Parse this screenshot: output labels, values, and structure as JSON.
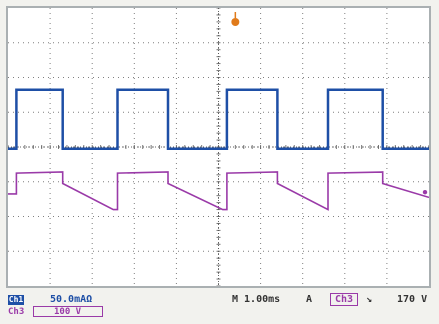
{
  "colors": {
    "ch1": "#1e4fa6",
    "ch3": "#9a3aa8",
    "trigger_marker": "#e07a1a",
    "grid": "#555555"
  },
  "readouts": {
    "ch1_label": "Ch1",
    "ch1_scale": "50.0mAΩ",
    "ch3_label": "Ch3",
    "ch3_scale": "100 V",
    "timebase": "M 1.00ms",
    "trigger_mode": "A",
    "trigger_source": "Ch3",
    "trigger_slope_icon": "falling-edge-icon",
    "trigger_slope": "↘",
    "trigger_level": "170 V"
  },
  "chart_data": {
    "type": "line",
    "grid": true,
    "divisions": {
      "x": 10,
      "y": 8
    },
    "series": [
      {
        "channel": "Ch1",
        "shape": "square",
        "x_divisions": [
          0,
          0.2,
          0.2,
          1.3,
          1.3,
          2.6,
          2.6,
          3.8,
          3.8,
          5.2,
          5.2,
          6.4,
          6.4,
          7.6,
          7.6,
          8.9,
          8.9,
          10
        ],
        "y_divisions": [
          -0.05,
          -0.05,
          1.65,
          1.65,
          -0.05,
          -0.05,
          1.65,
          1.65,
          -0.05,
          -0.05,
          1.65,
          1.65,
          -0.05,
          -0.05,
          1.65,
          1.65,
          -0.05,
          -0.05
        ]
      },
      {
        "channel": "Ch3",
        "shape": "decaying-pulse",
        "x_divisions": [
          0,
          0.2,
          0.2,
          1.3,
          1.3,
          2.5,
          2.6,
          2.6,
          3.8,
          3.8,
          5.1,
          5.2,
          5.2,
          6.4,
          6.4,
          7.6,
          7.6,
          8.9,
          8.9,
          10
        ],
        "y_divisions": [
          -1.35,
          -1.35,
          -0.75,
          -0.72,
          -1.05,
          -1.8,
          -1.8,
          -0.75,
          -0.72,
          -1.05,
          -1.8,
          -1.8,
          -0.75,
          -0.72,
          -1.05,
          -1.8,
          -0.75,
          -0.72,
          -1.05,
          -1.45
        ]
      }
    ]
  }
}
